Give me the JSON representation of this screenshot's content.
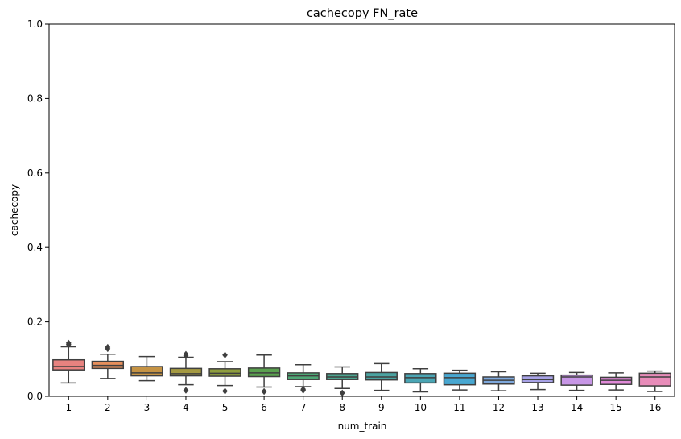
{
  "chart_data": {
    "type": "box",
    "title": "cachecopy FN_rate",
    "xlabel": "num_train",
    "ylabel": "cachecopy",
    "ylim": [
      0,
      1
    ],
    "yticks": [
      "0.0",
      "0.2",
      "0.4",
      "0.6",
      "0.8",
      "1.0"
    ],
    "grid": false,
    "categories": [
      "1",
      "2",
      "3",
      "4",
      "5",
      "6",
      "7",
      "8",
      "9",
      "10",
      "11",
      "12",
      "13",
      "14",
      "15",
      "16"
    ],
    "boxes": [
      {
        "category": "1",
        "whisker_low": 0.036,
        "q1": 0.071,
        "median": 0.08,
        "q3": 0.098,
        "whisker_high": 0.133,
        "outliers": [
          0.139,
          0.143
        ],
        "color": "#e8827f"
      },
      {
        "category": "2",
        "whisker_low": 0.048,
        "q1": 0.075,
        "median": 0.083,
        "q3": 0.094,
        "whisker_high": 0.113,
        "outliers": [
          0.128,
          0.132
        ],
        "color": "#e68f5c"
      },
      {
        "category": "3",
        "whisker_low": 0.042,
        "q1": 0.055,
        "median": 0.063,
        "q3": 0.08,
        "whisker_high": 0.107,
        "outliers": [],
        "color": "#c59344"
      },
      {
        "category": "4",
        "whisker_low": 0.031,
        "q1": 0.055,
        "median": 0.061,
        "q3": 0.075,
        "whisker_high": 0.105,
        "outliers": [
          0.109,
          0.113,
          0.016
        ],
        "color": "#a59a42"
      },
      {
        "category": "5",
        "whisker_low": 0.029,
        "q1": 0.054,
        "median": 0.062,
        "q3": 0.074,
        "whisker_high": 0.093,
        "outliers": [
          0.111,
          0.014
        ],
        "color": "#8f9e3e"
      },
      {
        "category": "6",
        "whisker_low": 0.025,
        "q1": 0.053,
        "median": 0.063,
        "q3": 0.076,
        "whisker_high": 0.111,
        "outliers": [
          0.013
        ],
        "color": "#5aa04f"
      },
      {
        "category": "7",
        "whisker_low": 0.026,
        "q1": 0.045,
        "median": 0.055,
        "q3": 0.063,
        "whisker_high": 0.085,
        "outliers": [
          0.019,
          0.016
        ],
        "color": "#4ea775"
      },
      {
        "category": "8",
        "whisker_low": 0.021,
        "q1": 0.045,
        "median": 0.052,
        "q3": 0.061,
        "whisker_high": 0.079,
        "outliers": [
          0.009
        ],
        "color": "#4ca48f"
      },
      {
        "category": "9",
        "whisker_low": 0.016,
        "q1": 0.044,
        "median": 0.052,
        "q3": 0.064,
        "whisker_high": 0.088,
        "outliers": [],
        "color": "#4ba3a1"
      },
      {
        "category": "10",
        "whisker_low": 0.012,
        "q1": 0.036,
        "median": 0.05,
        "q3": 0.061,
        "whisker_high": 0.074,
        "outliers": [],
        "color": "#4aa5b4"
      },
      {
        "category": "11",
        "whisker_low": 0.017,
        "q1": 0.031,
        "median": 0.05,
        "q3": 0.062,
        "whisker_high": 0.07,
        "outliers": [],
        "color": "#48a7d1"
      },
      {
        "category": "12",
        "whisker_low": 0.015,
        "q1": 0.033,
        "median": 0.043,
        "q3": 0.052,
        "whisker_high": 0.066,
        "outliers": [],
        "color": "#7ea8dc"
      },
      {
        "category": "13",
        "whisker_low": 0.018,
        "q1": 0.037,
        "median": 0.045,
        "q3": 0.055,
        "whisker_high": 0.062,
        "outliers": [],
        "color": "#a7a2e6"
      },
      {
        "category": "14",
        "whisker_low": 0.016,
        "q1": 0.03,
        "median": 0.052,
        "q3": 0.057,
        "whisker_high": 0.064,
        "outliers": [],
        "color": "#c796e6"
      },
      {
        "category": "15",
        "whisker_low": 0.017,
        "q1": 0.032,
        "median": 0.043,
        "q3": 0.051,
        "whisker_high": 0.063,
        "outliers": [],
        "color": "#e08ad8"
      },
      {
        "category": "16",
        "whisker_low": 0.013,
        "q1": 0.028,
        "median": 0.052,
        "q3": 0.062,
        "whisker_high": 0.068,
        "outliers": [],
        "color": "#e88cb9"
      }
    ]
  }
}
